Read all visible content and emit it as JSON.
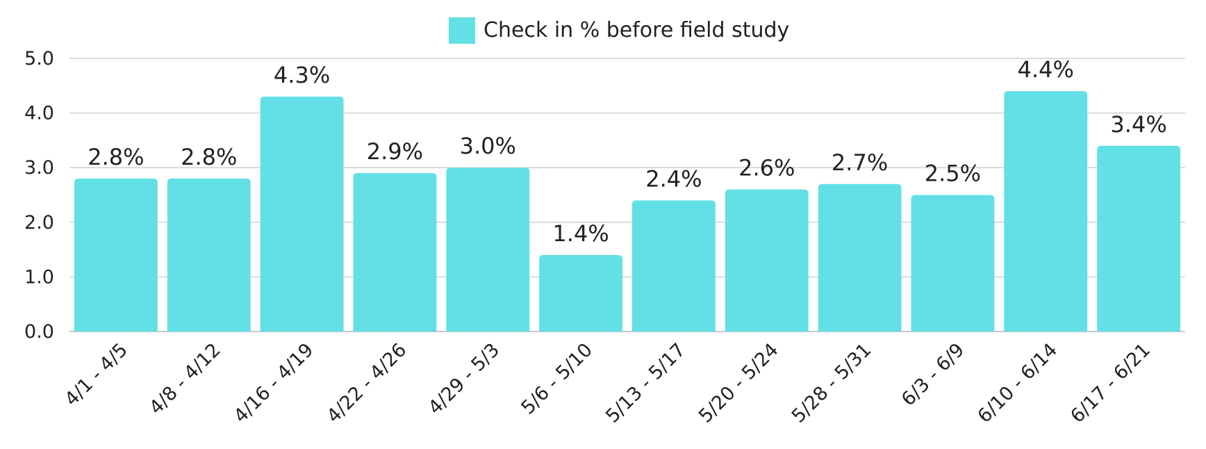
{
  "chart_data": {
    "type": "bar",
    "title": "",
    "xlabel": "",
    "ylabel": "",
    "ylim": [
      0,
      5
    ],
    "yticks": [
      "0.0",
      "1.0",
      "2.0",
      "3.0",
      "4.0",
      "5.0"
    ],
    "grid": true,
    "legend_position": "top-center",
    "categories": [
      "4/1 - 4/5",
      "4/8 - 4/12",
      "4/16 - 4/19",
      "4/22 - 4/26",
      "4/29 - 5/3",
      "5/6 - 5/10",
      "5/13 - 5/17",
      "5/20 - 5/24",
      "5/28 - 5/31",
      "6/3 - 6/9",
      "6/10 - 6/14",
      "6/17 - 6/21"
    ],
    "series": [
      {
        "name": "Check in % before field study",
        "color": "#62e0e6",
        "values": [
          2.8,
          2.8,
          4.3,
          2.9,
          3.0,
          1.4,
          2.4,
          2.6,
          2.7,
          2.5,
          4.4,
          3.4
        ],
        "data_labels": [
          "2.8%",
          "2.8%",
          "4.3%",
          "2.9%",
          "3.0%",
          "1.4%",
          "2.4%",
          "2.6%",
          "2.7%",
          "2.5%",
          "4.4%",
          "3.4%"
        ]
      }
    ]
  }
}
